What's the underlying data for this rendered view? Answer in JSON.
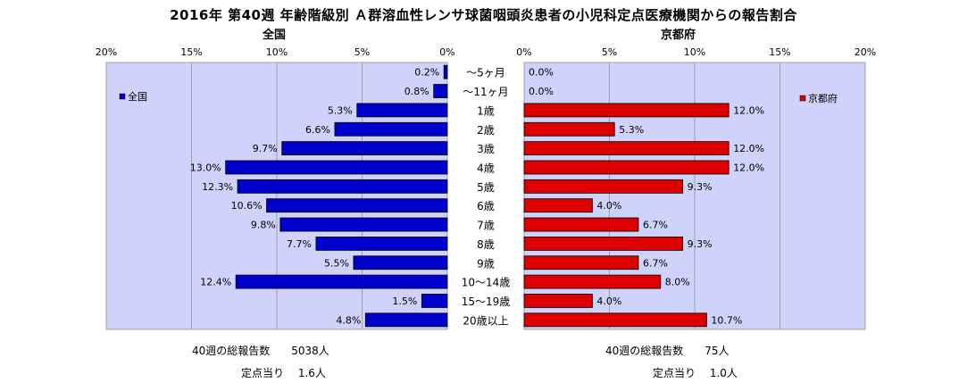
{
  "title": "2016年 第40週 年齢階級別 Ａ群溶血性レンサ球菌咽頭炎患者の小児科定点医療機関からの報告割合",
  "chart_data": {
    "type": "bar",
    "categories": [
      "～5ヶ月",
      "～11ヶ月",
      "1歳",
      "2歳",
      "3歳",
      "4歳",
      "5歳",
      "6歳",
      "7歳",
      "8歳",
      "9歳",
      "10～14歳",
      "15～19歳",
      "20歳以上"
    ],
    "panels": [
      {
        "title": "全国",
        "legend": "全国",
        "legend_position": "top-left",
        "direction": "left",
        "color": "#0000cc",
        "xlim": [
          0,
          20
        ],
        "ticks": [
          "20%",
          "15%",
          "10%",
          "5%",
          "0%"
        ],
        "tick_values": [
          20,
          15,
          10,
          5,
          0
        ],
        "values": [
          0.2,
          0.8,
          5.3,
          6.6,
          9.7,
          13.0,
          12.3,
          10.6,
          9.8,
          7.7,
          5.5,
          12.4,
          1.5,
          4.8
        ],
        "value_labels": [
          "0.2%",
          "0.8%",
          "5.3%",
          "6.6%",
          "9.7%",
          "13.0%",
          "12.3%",
          "10.6%",
          "9.8%",
          "7.7%",
          "5.5%",
          "12.4%",
          "1.5%",
          "4.8%"
        ]
      },
      {
        "title": "京都府",
        "legend": "京都府",
        "legend_position": "top-right",
        "direction": "right",
        "color": "#dd0000",
        "xlim": [
          0,
          20
        ],
        "ticks": [
          "0%",
          "5%",
          "10%",
          "15%",
          "20%"
        ],
        "tick_values": [
          0,
          5,
          10,
          15,
          20
        ],
        "values": [
          0.0,
          0.0,
          12.0,
          5.3,
          12.0,
          12.0,
          9.3,
          4.0,
          6.7,
          9.3,
          6.7,
          8.0,
          4.0,
          10.7
        ],
        "value_labels": [
          "0.0%",
          "0.0%",
          "12.0%",
          "5.3%",
          "12.0%",
          "12.0%",
          "9.3%",
          "4.0%",
          "6.7%",
          "9.3%",
          "6.7%",
          "8.0%",
          "4.0%",
          "10.7%"
        ]
      }
    ],
    "grid": true
  },
  "footer": {
    "national_total": "40週の総報告数　　5038人",
    "national_per": "定点当り　 1.6人",
    "kyoto_total": "40週の総報告数　　75人",
    "kyoto_per": "定点当り　 1.0人"
  }
}
